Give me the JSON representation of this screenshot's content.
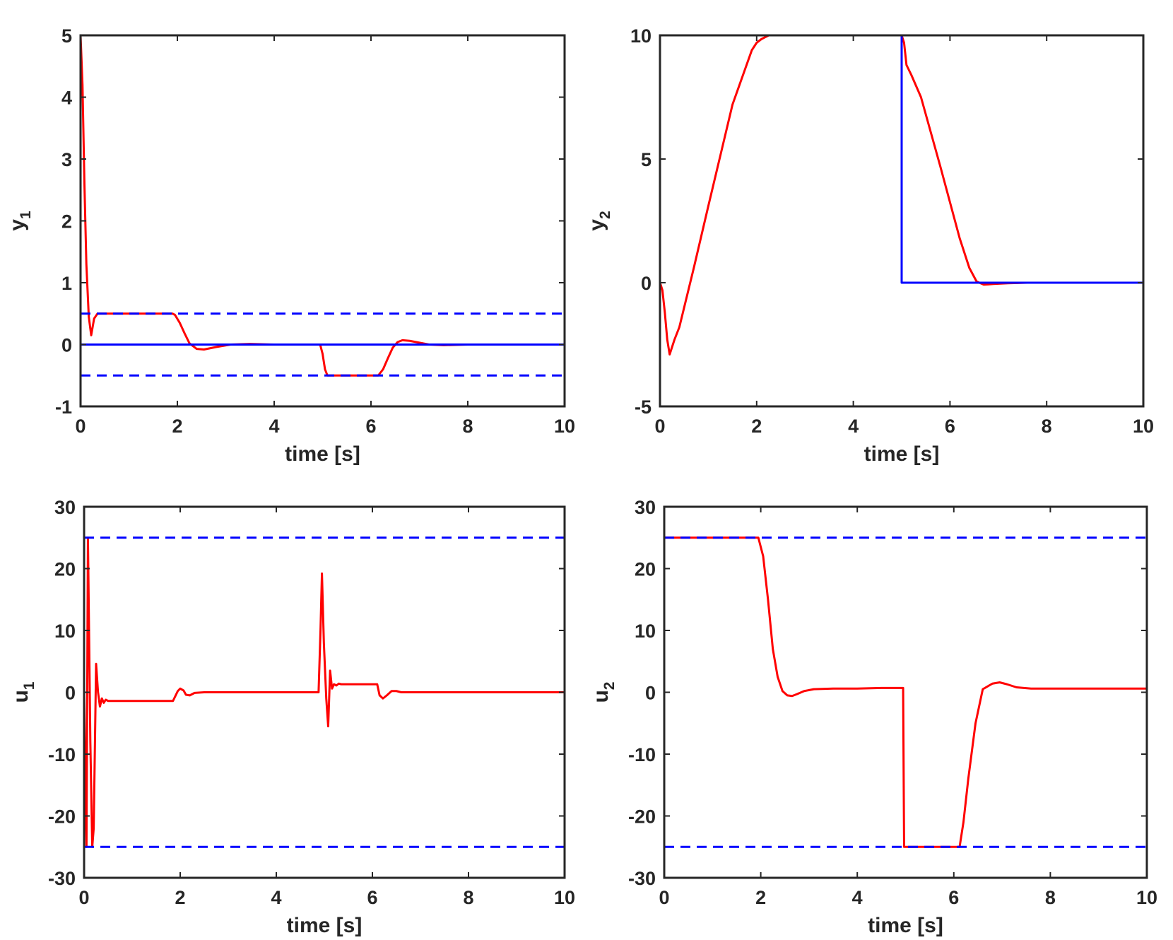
{
  "chart_data": [
    {
      "type": "line",
      "ylabel_main": "y",
      "ylabel_sub": "1",
      "xlabel": "time [s]",
      "xlim": [
        0,
        10
      ],
      "ylim": [
        -1,
        5
      ],
      "xticks": [
        0,
        2,
        4,
        6,
        8,
        10
      ],
      "xtick_labels": [
        "0",
        "2",
        "4",
        "6",
        "8",
        "10"
      ],
      "yticks": [
        -1,
        0,
        1,
        2,
        3,
        4,
        5
      ],
      "ytick_labels": [
        "-1",
        "0",
        "1",
        "2",
        "3",
        "4",
        "5"
      ],
      "grid": false,
      "series": [
        {
          "style": "solid",
          "color": "#ff0000",
          "x": [
            0,
            0.04,
            0.08,
            0.12,
            0.17,
            0.22,
            0.28,
            0.35,
            0.5,
            1.0,
            1.5,
            1.9,
            1.95,
            2.05,
            2.15,
            2.25,
            2.4,
            2.55,
            2.8,
            3.1,
            3.5,
            4.0,
            4.5,
            4.95,
            5.0,
            5.05,
            5.1,
            5.5,
            6.0,
            6.15,
            6.25,
            6.35,
            6.45,
            6.55,
            6.65,
            6.8,
            7.0,
            7.2,
            7.5,
            8.0,
            10.0
          ],
          "y": [
            5,
            4.2,
            2.6,
            1.3,
            0.45,
            0.15,
            0.42,
            0.5,
            0.5,
            0.5,
            0.5,
            0.5,
            0.48,
            0.35,
            0.18,
            0.02,
            -0.07,
            -0.08,
            -0.04,
            0.0,
            0.01,
            0.0,
            0.0,
            0.0,
            -0.15,
            -0.4,
            -0.5,
            -0.5,
            -0.5,
            -0.5,
            -0.4,
            -0.22,
            -0.05,
            0.04,
            0.07,
            0.06,
            0.03,
            0.0,
            -0.01,
            0.0,
            0.0
          ]
        },
        {
          "style": "solid",
          "color": "#0000ff",
          "x": [
            0,
            10
          ],
          "y": [
            0,
            0
          ]
        },
        {
          "style": "dashed",
          "color": "#0000ff",
          "x": [
            0,
            10
          ],
          "y": [
            0.5,
            0.5
          ]
        },
        {
          "style": "dashed",
          "color": "#0000ff",
          "x": [
            0,
            10
          ],
          "y": [
            -0.5,
            -0.5
          ]
        }
      ]
    },
    {
      "type": "line",
      "ylabel_main": "y",
      "ylabel_sub": "2",
      "xlabel": "time [s]",
      "xlim": [
        0,
        10
      ],
      "ylim": [
        -5,
        10
      ],
      "xticks": [
        0,
        2,
        4,
        6,
        8,
        10
      ],
      "xtick_labels": [
        "0",
        "2",
        "4",
        "6",
        "8",
        "10"
      ],
      "yticks": [
        -5,
        0,
        5,
        10
      ],
      "ytick_labels": [
        "-5",
        "0",
        "5",
        "10"
      ],
      "grid": false,
      "series": [
        {
          "style": "solid",
          "color": "#ff0000",
          "x": [
            0,
            0.05,
            0.1,
            0.15,
            0.2,
            0.3,
            0.4,
            0.7,
            1.0,
            1.5,
            1.9,
            2.0,
            2.1,
            2.25,
            2.5,
            3.0,
            4.0,
            5.0,
            5.05,
            5.1,
            5.2,
            5.4,
            5.8,
            6.2,
            6.4,
            6.55,
            6.7,
            6.9,
            7.2,
            7.6,
            10.0
          ],
          "y": [
            0,
            -0.3,
            -1.2,
            -2.3,
            -2.9,
            -2.3,
            -1.8,
            0.6,
            3.1,
            7.2,
            9.4,
            9.7,
            9.85,
            10,
            10,
            10,
            10,
            10,
            9.7,
            8.8,
            8.4,
            7.5,
            4.7,
            1.8,
            0.6,
            0.05,
            -0.08,
            -0.05,
            -0.02,
            0,
            0
          ]
        },
        {
          "style": "solid",
          "color": "#0000ff",
          "x": [
            0,
            5,
            5,
            10
          ],
          "y": [
            10,
            10,
            0,
            0
          ]
        }
      ]
    },
    {
      "type": "line",
      "ylabel_main": "u",
      "ylabel_sub": "1",
      "xlabel": "time [s]",
      "xlim": [
        0,
        10
      ],
      "ylim": [
        -30,
        30
      ],
      "xticks": [
        0,
        2,
        4,
        6,
        8,
        10
      ],
      "xtick_labels": [
        "0",
        "2",
        "4",
        "6",
        "8",
        "10"
      ],
      "yticks": [
        -30,
        -20,
        -10,
        0,
        10,
        20,
        30
      ],
      "ytick_labels": [
        "-30",
        "-20",
        "-10",
        "0",
        "10",
        "20",
        "30"
      ],
      "grid": false,
      "series": [
        {
          "style": "solid",
          "color": "#ff0000",
          "x": [
            0,
            0.05,
            0.08,
            0.1,
            0.13,
            0.17,
            0.2,
            0.25,
            0.29,
            0.33,
            0.37,
            0.41,
            0.45,
            0.5,
            0.7,
            1.0,
            1.5,
            1.85,
            1.95,
            2.0,
            2.07,
            2.12,
            2.2,
            2.3,
            2.5,
            3.0,
            4.0,
            4.88,
            4.92,
            4.95,
            4.99,
            5.04,
            5.08,
            5.12,
            5.16,
            5.2,
            5.25,
            5.3,
            5.35,
            5.4,
            5.6,
            6.0,
            6.1,
            6.15,
            6.22,
            6.3,
            6.4,
            6.5,
            6.6,
            6.8,
            7.0,
            7.5,
            8.0,
            10.0
          ],
          "y": [
            0,
            -25,
            25,
            12,
            -8,
            -25,
            -22,
            4.6,
            0,
            -2.3,
            -1,
            -1.7,
            -1.2,
            -1.4,
            -1.4,
            -1.4,
            -1.4,
            -1.4,
            0.2,
            0.6,
            0.3,
            -0.4,
            -0.5,
            -0.1,
            0,
            0,
            0,
            0,
            10,
            19.2,
            8,
            -1,
            -5.5,
            3.5,
            0.6,
            1.3,
            1.1,
            1.4,
            1.3,
            1.3,
            1.3,
            1.3,
            1.3,
            -0.5,
            -1,
            -0.5,
            0.2,
            0.2,
            0,
            0,
            0,
            0,
            0,
            0
          ]
        },
        {
          "style": "dashed",
          "color": "#0000ff",
          "x": [
            0,
            10
          ],
          "y": [
            25,
            25
          ]
        },
        {
          "style": "dashed",
          "color": "#0000ff",
          "x": [
            0,
            10
          ],
          "y": [
            -25,
            -25
          ]
        }
      ]
    },
    {
      "type": "line",
      "ylabel_main": "u",
      "ylabel_sub": "2",
      "xlabel": "time [s]",
      "xlim": [
        0,
        10
      ],
      "ylim": [
        -30,
        30
      ],
      "xticks": [
        0,
        2,
        4,
        6,
        8,
        10
      ],
      "xtick_labels": [
        "0",
        "2",
        "4",
        "6",
        "8",
        "10"
      ],
      "yticks": [
        -30,
        -20,
        -10,
        0,
        10,
        20,
        30
      ],
      "ytick_labels": [
        "-30",
        "-20",
        "-10",
        "0",
        "10",
        "20",
        "30"
      ],
      "grid": false,
      "series": [
        {
          "style": "solid",
          "color": "#ff0000",
          "x": [
            0,
            1.95,
            2.05,
            2.15,
            2.25,
            2.35,
            2.45,
            2.55,
            2.65,
            2.75,
            2.9,
            3.1,
            3.5,
            4.0,
            4.5,
            4.95,
            4.97,
            5.0,
            5.5,
            6.0,
            6.12,
            6.2,
            6.3,
            6.45,
            6.6,
            6.8,
            6.95,
            7.1,
            7.3,
            7.6,
            8.0,
            10.0
          ],
          "y": [
            25,
            25,
            22,
            15,
            7,
            2.5,
            0.2,
            -0.5,
            -0.6,
            -0.3,
            0.2,
            0.5,
            0.6,
            0.6,
            0.7,
            0.7,
            -25,
            -25,
            -25,
            -25,
            -25,
            -21,
            -14,
            -5,
            0.5,
            1.4,
            1.6,
            1.3,
            0.8,
            0.6,
            0.6,
            0.6
          ]
        },
        {
          "style": "dashed",
          "color": "#0000ff",
          "x": [
            0,
            10
          ],
          "y": [
            25,
            25
          ]
        },
        {
          "style": "dashed",
          "color": "#0000ff",
          "x": [
            0,
            10
          ],
          "y": [
            -25,
            -25
          ]
        }
      ]
    }
  ]
}
